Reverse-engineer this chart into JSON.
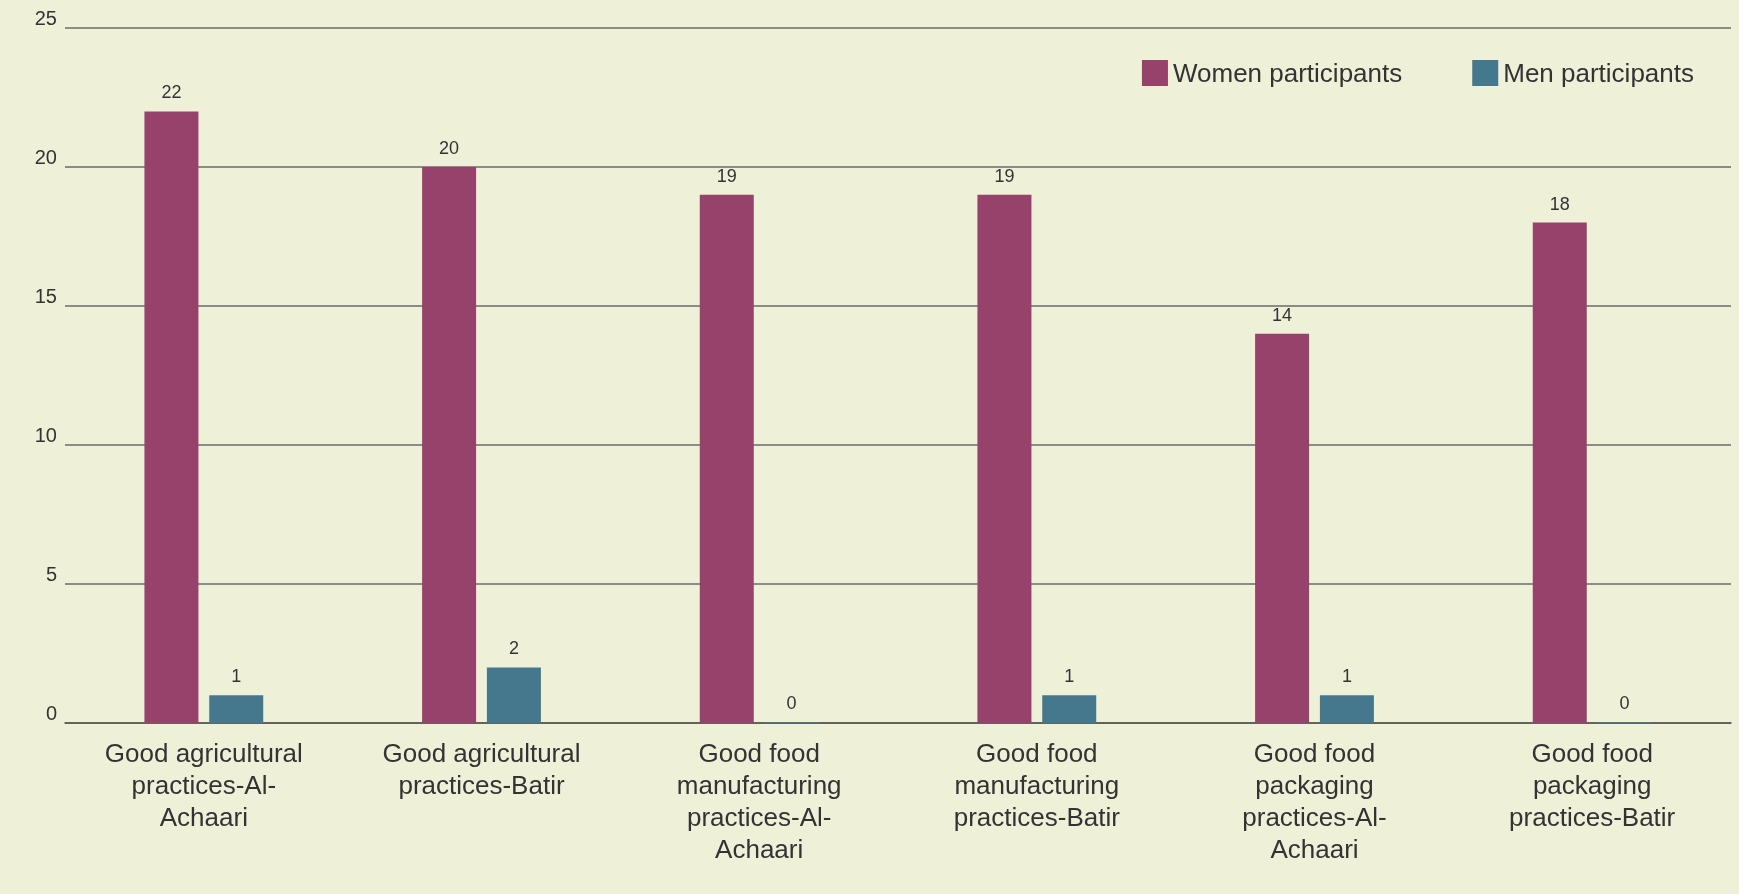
{
  "chart_data": {
    "type": "bar",
    "categories": [
      "Good agricultural practices-Al-Achaari",
      "Good agricultural practices-Batir",
      "Good food manufacturing practices-Al-Achaari",
      "Good food manufacturing practices-Batir",
      "Good food packaging practices-Al-Achaari",
      "Good food packaging practices-Batir"
    ],
    "series": [
      {
        "name": "Women participants",
        "color": "#97426a",
        "values": [
          22,
          20,
          19,
          19,
          14,
          18
        ]
      },
      {
        "name": "Men participants",
        "color": "#45788c",
        "values": [
          1,
          2,
          0,
          1,
          1,
          0
        ]
      }
    ],
    "ylim": [
      0,
      25
    ],
    "yticks": [
      0,
      5,
      10,
      15,
      20,
      25
    ],
    "grid": "y",
    "legend": "top right",
    "data_labels": true
  }
}
